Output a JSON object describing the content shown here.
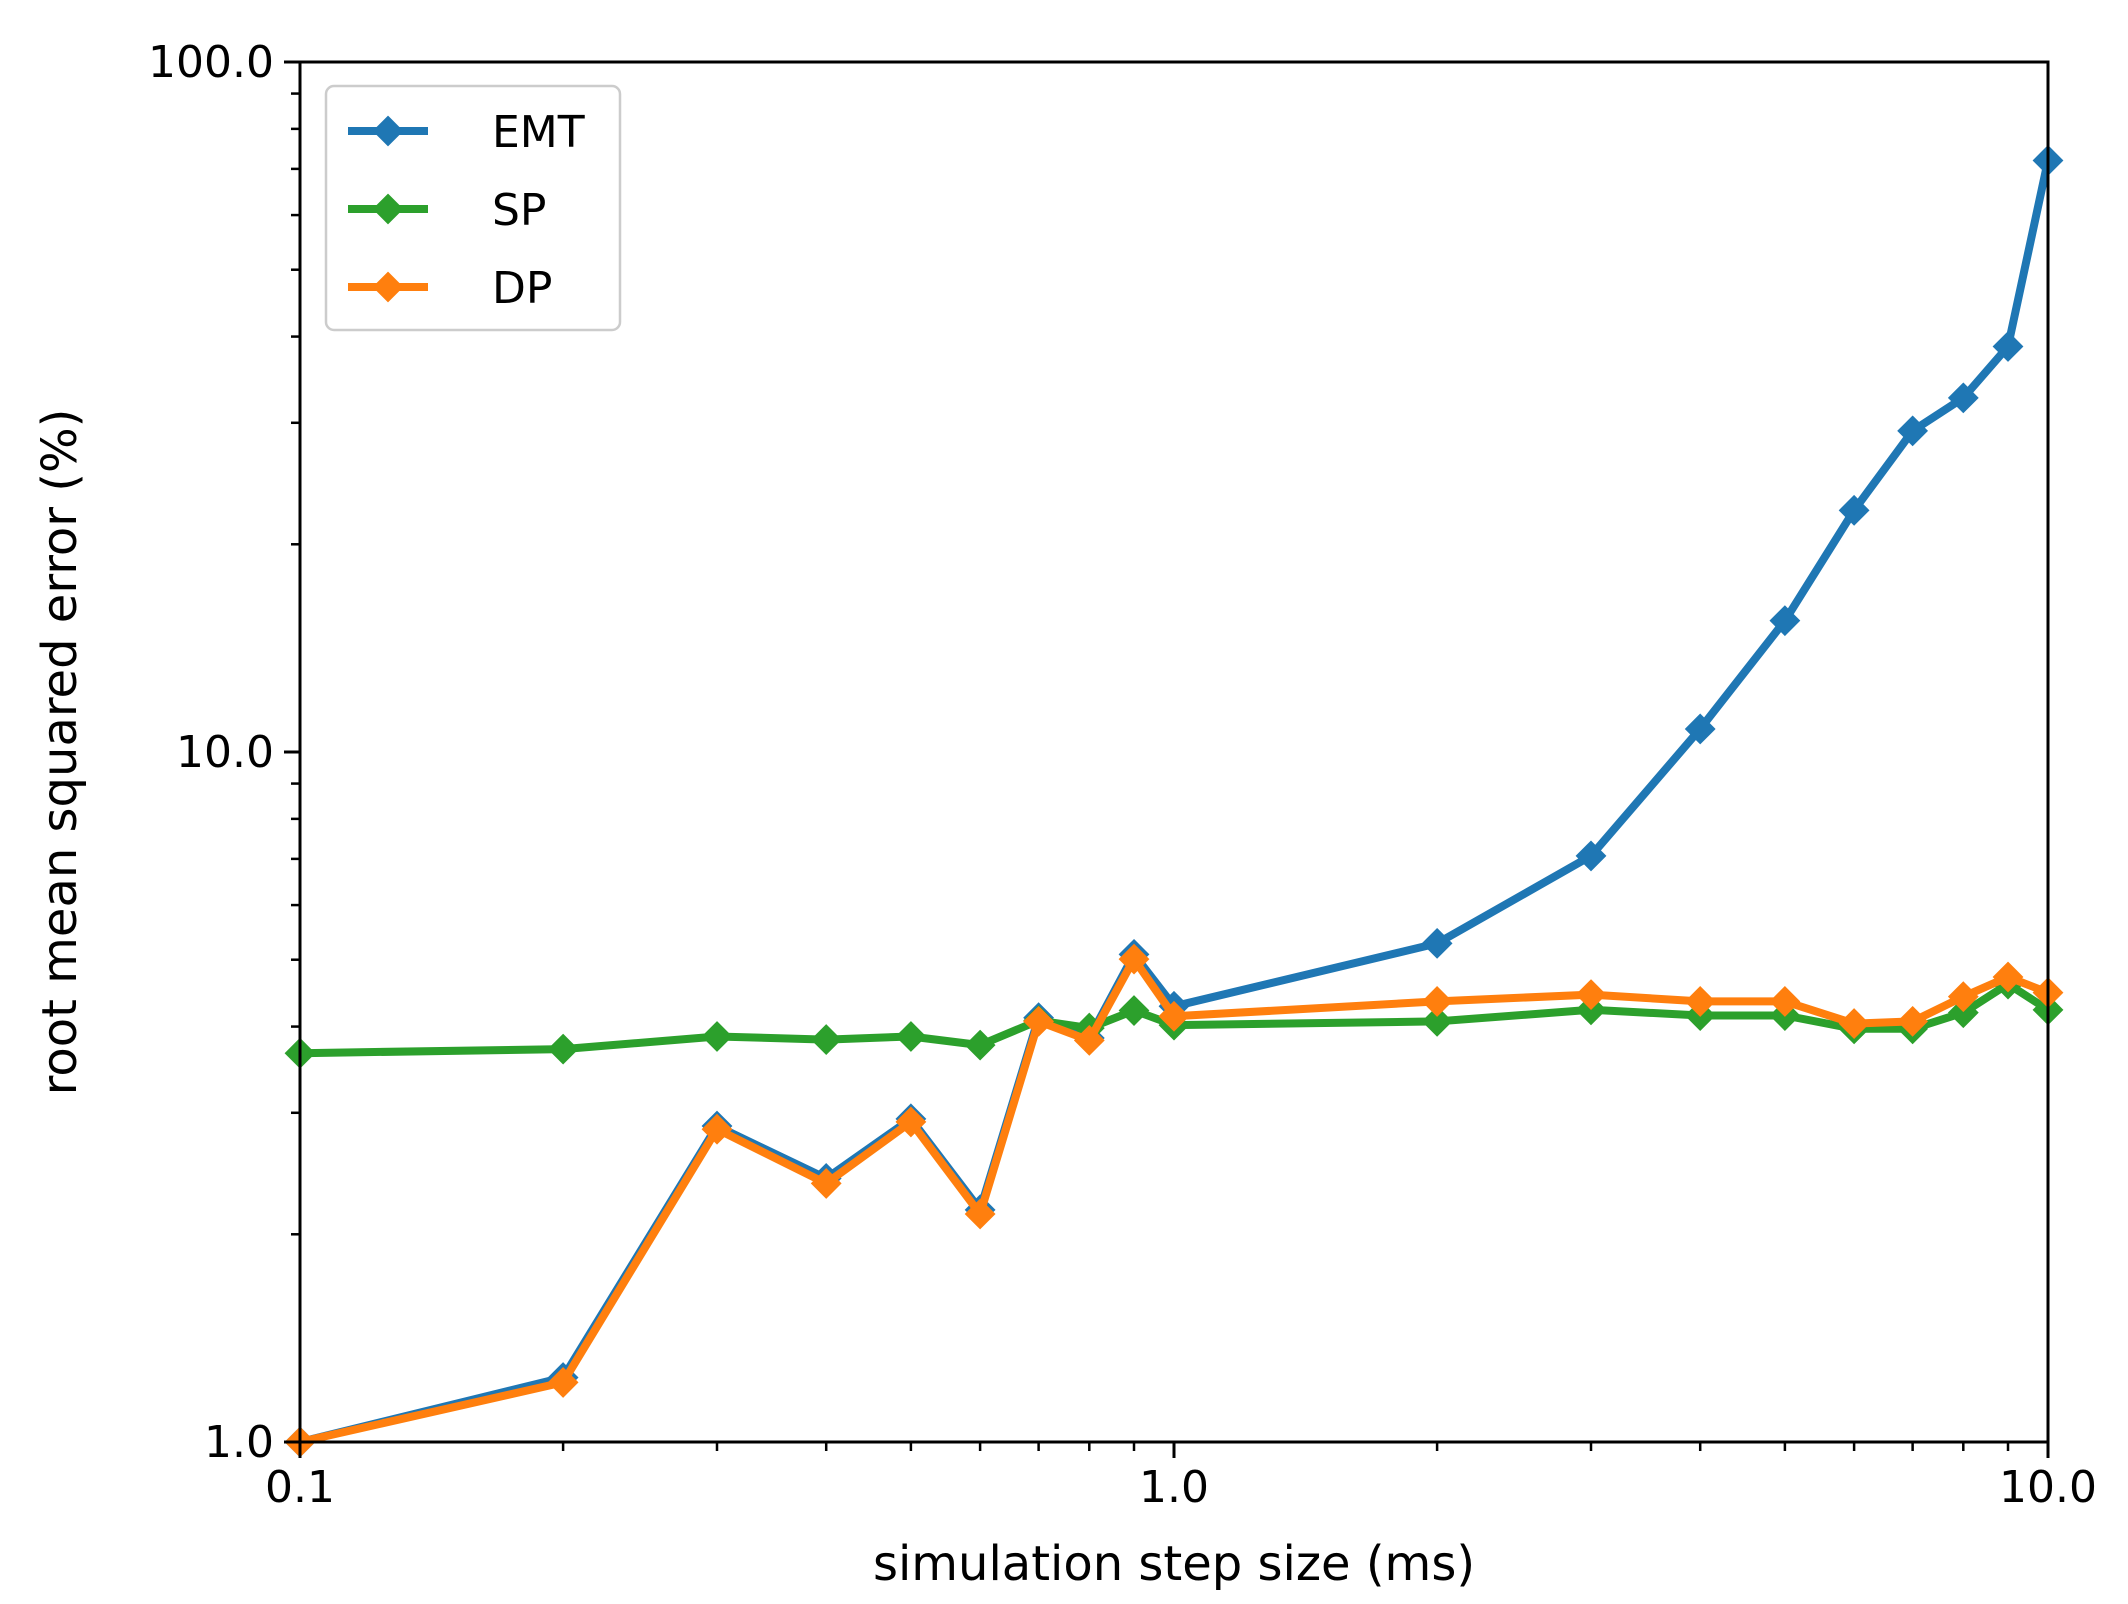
{
  "chart_data": {
    "type": "line",
    "title": "",
    "xlabel": "simulation step size (ms)",
    "ylabel": "root mean squared error (%)",
    "xscale": "log",
    "yscale": "log",
    "xlim": [
      0.1,
      10.0
    ],
    "ylim": [
      1.0,
      100.0
    ],
    "xticks": [
      {
        "value": 0.1,
        "label": "0.1"
      },
      {
        "value": 1.0,
        "label": "1.0"
      },
      {
        "value": 10.0,
        "label": "10.0"
      }
    ],
    "yticks": [
      {
        "value": 1.0,
        "label": "1.0"
      },
      {
        "value": 10.0,
        "label": "10.0"
      },
      {
        "value": 100.0,
        "label": "100.0"
      }
    ],
    "grid": false,
    "legend_position": "top-left",
    "marker": "diamond",
    "x": [
      0.1,
      0.2,
      0.3,
      0.4,
      0.5,
      0.6,
      0.7,
      0.8,
      0.9,
      1.0,
      2.0,
      3.0,
      4.0,
      5.0,
      6.0,
      7.0,
      8.0,
      9.0,
      10.0
    ],
    "series": [
      {
        "name": "EMT",
        "color": "#1f77b4",
        "values": [
          1.0,
          1.24,
          2.87,
          2.41,
          2.94,
          2.17,
          4.12,
          3.85,
          5.09,
          4.28,
          5.28,
          7.07,
          10.8,
          15.5,
          22.4,
          29.2,
          32.6,
          38.7,
          72.0
        ]
      },
      {
        "name": "SP",
        "color": "#2ca02c",
        "values": [
          3.66,
          3.71,
          3.87,
          3.83,
          3.87,
          3.76,
          4.08,
          3.98,
          4.22,
          4.02,
          4.07,
          4.23,
          4.15,
          4.15,
          3.97,
          3.97,
          4.19,
          4.61,
          4.23
        ]
      },
      {
        "name": "DP",
        "color": "#ff7f0e",
        "values": [
          1.0,
          1.22,
          2.84,
          2.37,
          2.91,
          2.14,
          4.07,
          3.82,
          5.01,
          4.14,
          4.35,
          4.45,
          4.35,
          4.35,
          4.04,
          4.07,
          4.42,
          4.72,
          4.48
        ]
      }
    ]
  }
}
